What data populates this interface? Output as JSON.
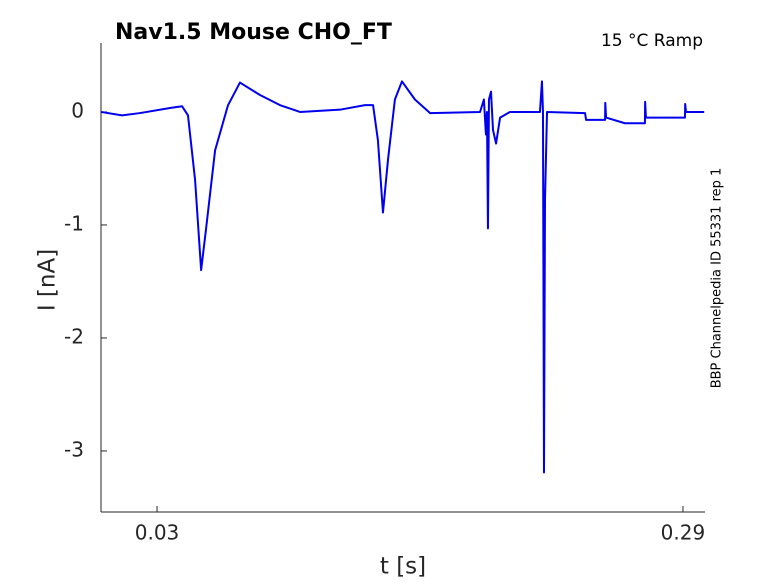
{
  "chart_data": {
    "type": "line",
    "title": "Nav1.5  Mouse  CHO_FT",
    "subtitle": "15 °C  Ramp",
    "side_label": "BBP Channelpedia ID 55331 rep 1",
    "x_label": "t [s]",
    "y_label": "I [nA]",
    "x": [
      0.0023,
      0.0127,
      0.0216,
      0.0364,
      0.0424,
      0.0453,
      0.0488,
      0.0518,
      0.0542,
      0.0587,
      0.0651,
      0.071,
      0.0809,
      0.0908,
      0.1007,
      0.1205,
      0.1328,
      0.1368,
      0.1392,
      0.1417,
      0.1442,
      0.1476,
      0.1511,
      0.1575,
      0.165,
      0.1897,
      0.1916,
      0.1926,
      0.1931,
      0.1936,
      0.1941,
      0.1951,
      0.1961,
      0.1976,
      0.1996,
      0.2045,
      0.2193,
      0.2203,
      0.2208,
      0.2213,
      0.2218,
      0.2228,
      0.2416,
      0.2421,
      0.2515,
      0.2516,
      0.252,
      0.2613,
      0.2712,
      0.2713,
      0.2717,
      0.2811,
      0.291,
      0.2911,
      0.2915,
      0.3005
    ],
    "series": [
      {
        "name": "I",
        "color": "#0000ee",
        "values": [
          0,
          -0.03,
          -0.01,
          0.035,
          0.05,
          -0.03,
          -0.6,
          -1.4,
          -1.04,
          -0.34,
          0.06,
          0.26,
          0.15,
          0.06,
          0,
          0.02,
          0.06,
          0.06,
          -0.25,
          -0.89,
          -0.42,
          0.11,
          0.27,
          0.11,
          -0.01,
          0,
          0.11,
          -0.2,
          0,
          -1.03,
          0.11,
          0.18,
          -0.16,
          -0.28,
          -0.05,
          0,
          0,
          0.27,
          0,
          -3.19,
          -0.78,
          0,
          -0.01,
          -0.07,
          -0.07,
          0.08,
          -0.05,
          -0.1,
          -0.1,
          0.09,
          -0.05,
          -0.05,
          -0.05,
          0.07,
          0,
          0
        ]
      }
    ],
    "xlim": [
      0.0023,
      0.3009
    ],
    "ylim": [
      -3.54,
      0.61
    ],
    "xticks": [
      0.03,
      0.29
    ],
    "yticks": [
      0,
      -1,
      -2,
      -3
    ]
  }
}
